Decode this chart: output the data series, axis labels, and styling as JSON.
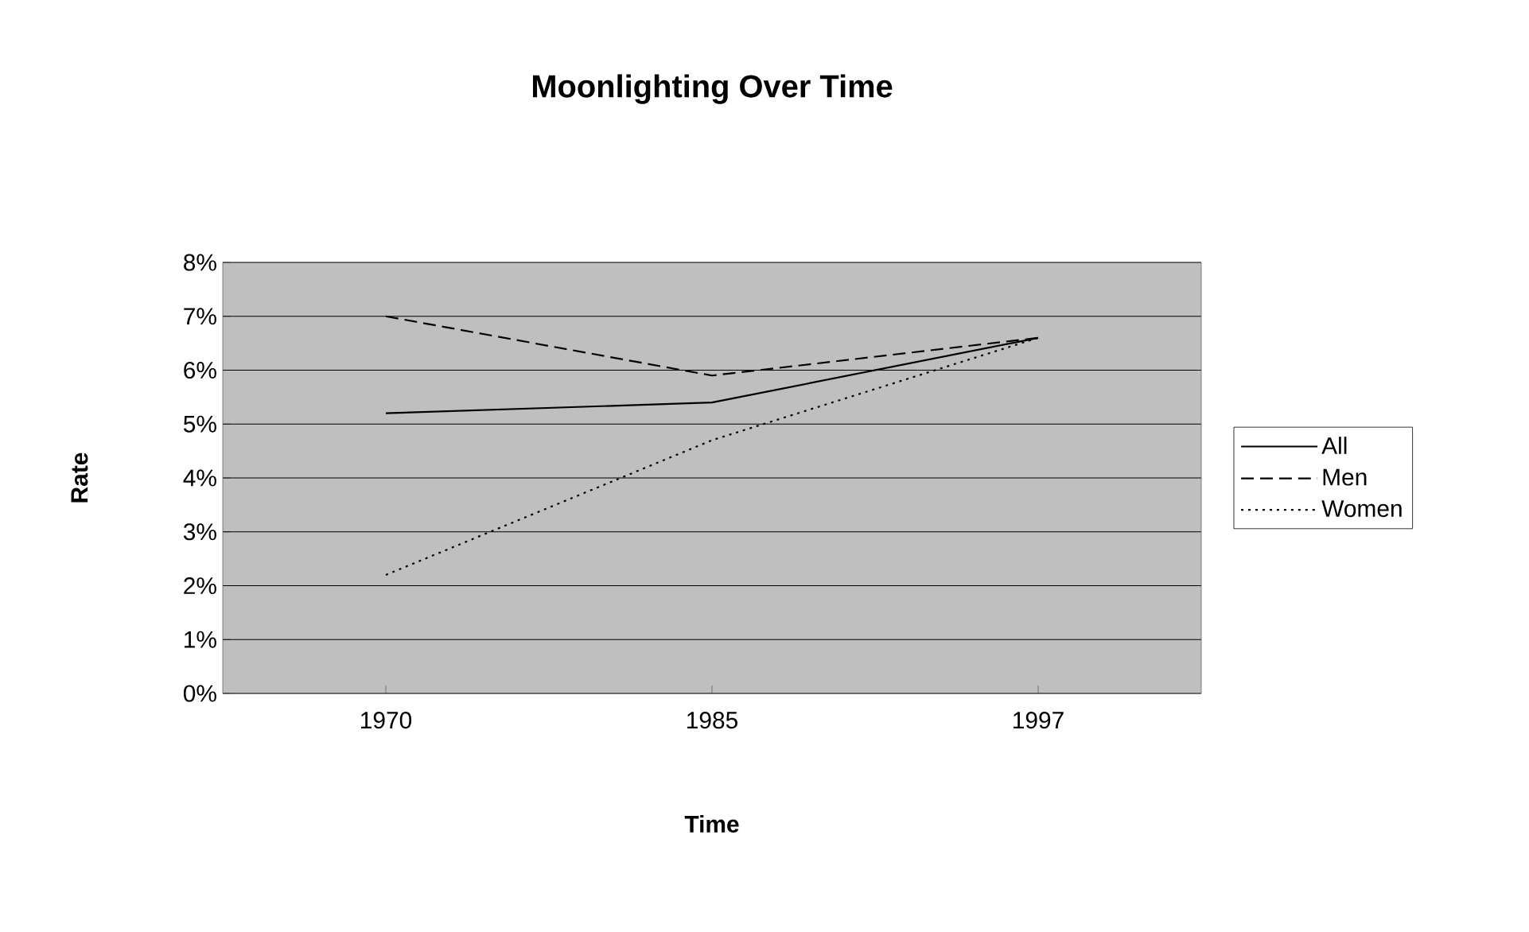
{
  "chart_data": {
    "type": "line",
    "title": "Moonlighting Over Time",
    "xlabel": "Time",
    "ylabel": "Rate",
    "categories": [
      "1970",
      "1985",
      "1997"
    ],
    "series": [
      {
        "name": "All",
        "color": "#000000",
        "line_style": "solid",
        "values": [
          5.2,
          5.4,
          6.6
        ]
      },
      {
        "name": "Men",
        "color": "#000000",
        "line_style": "dashed",
        "values": [
          7.0,
          5.9,
          6.6
        ]
      },
      {
        "name": "Women",
        "color": "#000000",
        "line_style": "dotted",
        "values": [
          2.2,
          4.7,
          6.6
        ]
      }
    ],
    "ylim": [
      0,
      8
    ],
    "yticks": [
      {
        "value": 0,
        "label": "0%"
      },
      {
        "value": 1,
        "label": "1%"
      },
      {
        "value": 2,
        "label": "2%"
      },
      {
        "value": 3,
        "label": "3%"
      },
      {
        "value": 4,
        "label": "4%"
      },
      {
        "value": 5,
        "label": "5%"
      },
      {
        "value": 6,
        "label": "6%"
      },
      {
        "value": 7,
        "label": "7%"
      },
      {
        "value": 8,
        "label": "8%"
      }
    ],
    "grid": "y",
    "legend": "right",
    "marker": "none"
  }
}
